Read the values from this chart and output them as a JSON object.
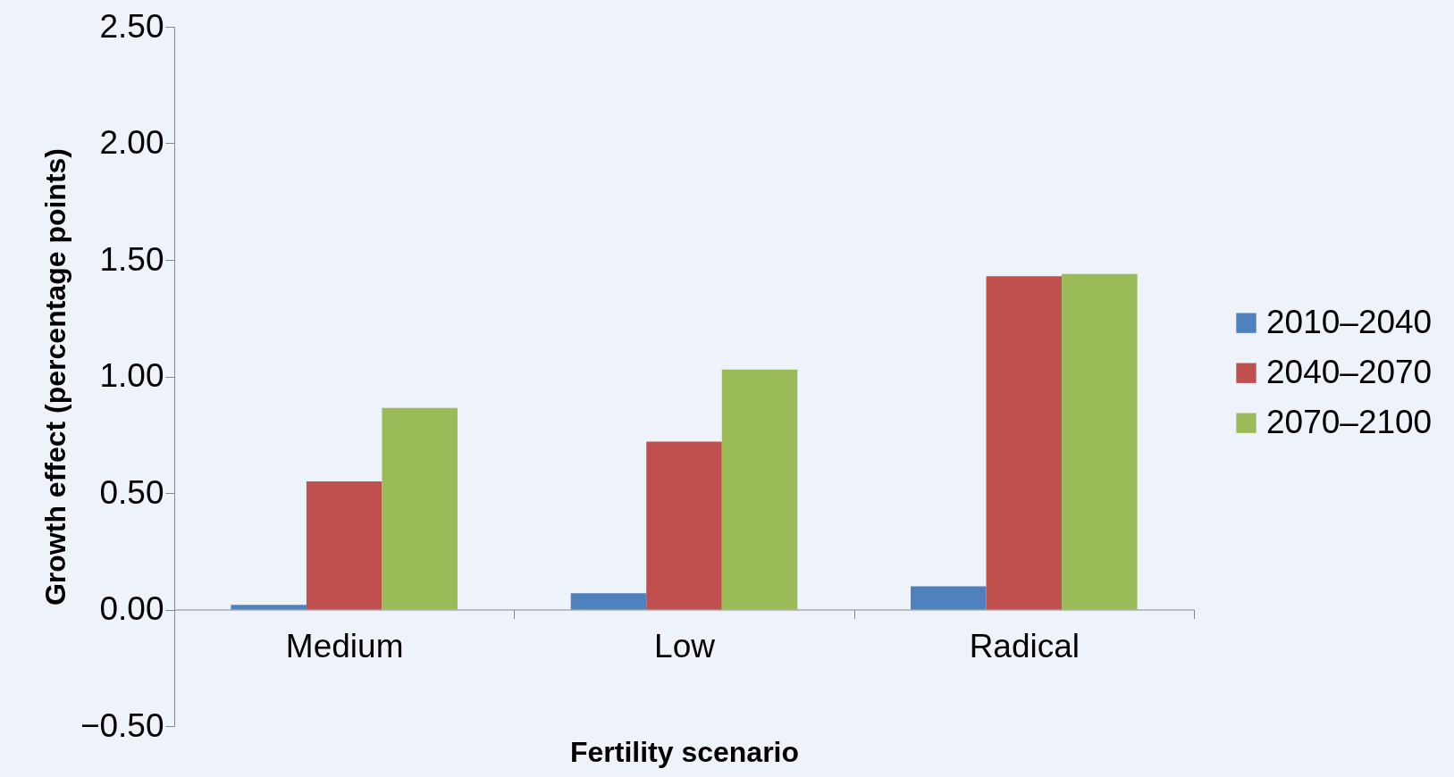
{
  "chart_data": {
    "type": "bar",
    "xlabel": "Fertility scenario",
    "ylabel": "Growth effect (percentage points)",
    "categories": [
      "Medium",
      "Low",
      "Radical"
    ],
    "series": [
      {
        "name": "2010–2040",
        "color": "#4f81bd",
        "values": [
          0.02,
          0.07,
          0.1
        ]
      },
      {
        "name": "2040–2070",
        "color": "#c0504d",
        "values": [
          0.55,
          0.72,
          1.43
        ]
      },
      {
        "name": "2070–2100",
        "color": "#9bbb59",
        "values": [
          0.865,
          1.03,
          1.44
        ]
      }
    ],
    "ylim": [
      -0.5,
      2.5
    ],
    "yticks": [
      {
        "value": -0.5,
        "label": "−0.50"
      },
      {
        "value": 0,
        "label": "0.00"
      },
      {
        "value": 0.5,
        "label": "0.50"
      },
      {
        "value": 1,
        "label": "1.00"
      },
      {
        "value": 1.5,
        "label": "1.50"
      },
      {
        "value": 2,
        "label": "2.00"
      },
      {
        "value": 2.5,
        "label": "2.50"
      }
    ],
    "legend": "right",
    "grid": false
  }
}
